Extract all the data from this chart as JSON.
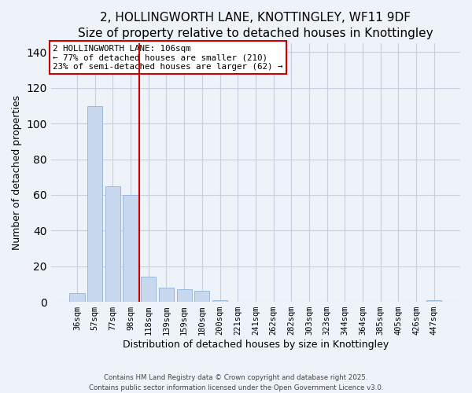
{
  "title": "2, HOLLINGWORTH LANE, KNOTTINGLEY, WF11 9DF",
  "subtitle": "Size of property relative to detached houses in Knottingley",
  "xlabel": "Distribution of detached houses by size in Knottingley",
  "ylabel": "Number of detached properties",
  "bar_labels": [
    "36sqm",
    "57sqm",
    "77sqm",
    "98sqm",
    "118sqm",
    "139sqm",
    "159sqm",
    "180sqm",
    "200sqm",
    "221sqm",
    "241sqm",
    "262sqm",
    "282sqm",
    "303sqm",
    "323sqm",
    "344sqm",
    "364sqm",
    "385sqm",
    "405sqm",
    "426sqm",
    "447sqm"
  ],
  "bar_values": [
    5,
    110,
    65,
    60,
    14,
    8,
    7,
    6,
    1,
    0,
    0,
    0,
    0,
    0,
    0,
    0,
    0,
    0,
    0,
    0,
    1
  ],
  "bar_color": "#c8d9ef",
  "bar_edge_color": "#9ab8d8",
  "vline_x": 3.5,
  "vline_color": "#cc0000",
  "annotation_lines": [
    "2 HOLLINGWORTH LANE: 106sqm",
    "← 77% of detached houses are smaller (210)",
    "23% of semi-detached houses are larger (62) →"
  ],
  "ylim": [
    0,
    145
  ],
  "yticks": [
    0,
    20,
    40,
    60,
    80,
    100,
    120,
    140
  ],
  "title_fontsize": 11,
  "xlabel_fontsize": 9,
  "ylabel_fontsize": 9,
  "tick_fontsize": 7.5,
  "footer_line1": "Contains HM Land Registry data © Crown copyright and database right 2025.",
  "footer_line2": "Contains public sector information licensed under the Open Government Licence v3.0.",
  "background_color": "#eef2f9",
  "grid_color": "#c8d0e0"
}
